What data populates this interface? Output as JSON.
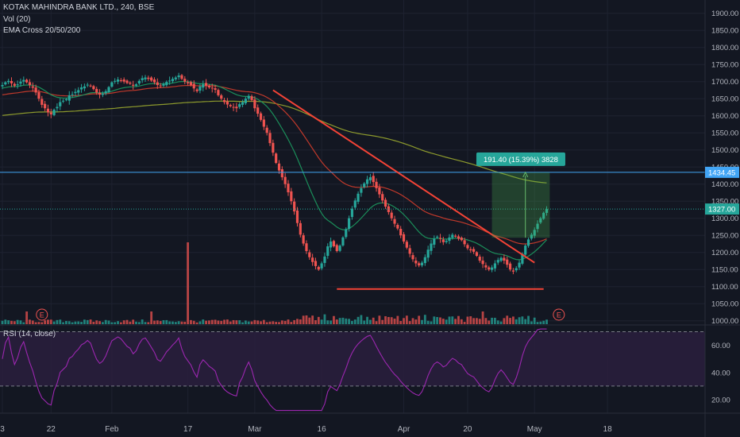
{
  "legend": {
    "title": "KOTAK MAHINDRA BANK LTD., 240, BSE",
    "volume": "Vol (20)",
    "ema": "EMA Cross 20/50/200",
    "rsi": "RSI (14, close)"
  },
  "colors": {
    "background": "#131722",
    "up": "#26a69a",
    "down": "#ef5350",
    "ema20": "#1b8e5a",
    "ema50": "#c0392b",
    "ema200": "#8d9a2d",
    "trendline": "#f44336",
    "hline": "#42a5f5",
    "box": "#2e7d32",
    "rsi_line": "#9c27b0",
    "rsi_band": "#2a1f3d"
  },
  "chart_data": {
    "type": "candlestick",
    "title": "KOTAK MAHINDRA BANK LTD., 240, BSE",
    "y_ticks": [
      1000,
      1050,
      1100,
      1150,
      1200,
      1250,
      1300,
      1350,
      1400,
      1450,
      1500,
      1550,
      1600,
      1650,
      1700,
      1750,
      1800,
      1850,
      1900
    ],
    "y_tick_labels": [
      "1000.00",
      "1050.00",
      "1100.00",
      "1150.00",
      "1200.00",
      "1250.00",
      "1300.00",
      "1350.00",
      "1400.00",
      "1450.00",
      "1500.00",
      "1550.00",
      "1600.00",
      "1650.00",
      "1700.00",
      "1750.00",
      "1800.00",
      "1850.00",
      "1900.00"
    ],
    "ylim": [
      990,
      1925
    ],
    "x_tick_labels": [
      "3",
      "22",
      "Feb",
      "17",
      "Mar",
      "16",
      "Apr",
      "20",
      "May",
      "18"
    ],
    "x_tick_index": [
      0,
      16,
      36,
      61,
      83,
      105,
      132,
      153,
      175,
      199
    ],
    "bars": 230,
    "close_series": [
      1690,
      1698,
      1702,
      1695,
      1688,
      1692,
      1700,
      1705,
      1698,
      1690,
      1682,
      1668,
      1650,
      1632,
      1622,
      1610,
      1604,
      1618,
      1626,
      1640,
      1644,
      1648,
      1660,
      1663,
      1670,
      1675,
      1683,
      1686,
      1691,
      1688,
      1678,
      1668,
      1662,
      1665,
      1672,
      1684,
      1698,
      1702,
      1706,
      1704,
      1700,
      1696,
      1694,
      1688,
      1692,
      1702,
      1710,
      1712,
      1708,
      1703,
      1698,
      1690,
      1688,
      1693,
      1699,
      1703,
      1708,
      1712,
      1718,
      1708,
      1700,
      1695,
      1690,
      1680,
      1672,
      1686,
      1692,
      1688,
      1683,
      1680,
      1676,
      1660,
      1650,
      1640,
      1633,
      1628,
      1624,
      1622,
      1634,
      1640,
      1650,
      1658,
      1646,
      1622,
      1606,
      1588,
      1568,
      1550,
      1520,
      1492,
      1462,
      1440,
      1420,
      1400,
      1376,
      1350,
      1320,
      1286,
      1252,
      1226,
      1204,
      1186,
      1172,
      1160,
      1150,
      1168,
      1188,
      1218,
      1232,
      1218,
      1204,
      1220,
      1244,
      1268,
      1300,
      1328,
      1352,
      1372,
      1388,
      1402,
      1414,
      1420,
      1406,
      1388,
      1370,
      1352,
      1334,
      1318,
      1300,
      1284,
      1270,
      1250,
      1232,
      1214,
      1196,
      1180,
      1168,
      1162,
      1170,
      1186,
      1208,
      1226,
      1240,
      1246,
      1240,
      1230,
      1234,
      1244,
      1252,
      1248,
      1240,
      1236,
      1224,
      1212,
      1206,
      1202,
      1190,
      1176,
      1166,
      1156,
      1150,
      1156,
      1168,
      1178,
      1184,
      1176,
      1164,
      1150,
      1144,
      1154,
      1170,
      1196,
      1220,
      1238,
      1252,
      1266,
      1284,
      1300,
      1316,
      1327
    ],
    "rsi": {
      "y_ticks": [
        20,
        40,
        60
      ],
      "y_tick_labels": [
        "20.00",
        "40.00",
        "60.00"
      ],
      "upper": 70,
      "lower": 30,
      "ylim": [
        10,
        75
      ]
    },
    "annotations": {
      "price_label_current": "1327.00",
      "price_label_level": "1434.45",
      "level_value": 1434.45,
      "current_value": 1327,
      "measure_label": "191.40 (15.39%) 3828",
      "measure_from": 1243,
      "measure_to": 1434.45,
      "support_value": 1093,
      "event_badge": "E"
    }
  }
}
